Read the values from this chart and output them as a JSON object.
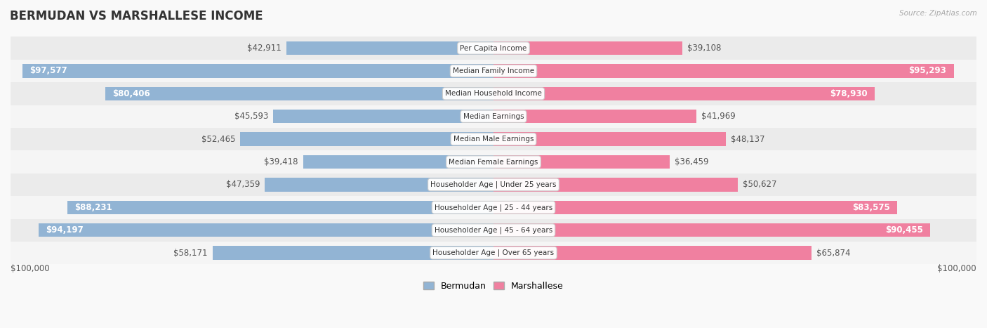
{
  "title": "BERMUDAN VS MARSHALLESE INCOME",
  "source": "Source: ZipAtlas.com",
  "max_val": 100000,
  "categories": [
    "Per Capita Income",
    "Median Family Income",
    "Median Household Income",
    "Median Earnings",
    "Median Male Earnings",
    "Median Female Earnings",
    "Householder Age | Under 25 years",
    "Householder Age | 25 - 44 years",
    "Householder Age | 45 - 64 years",
    "Householder Age | Over 65 years"
  ],
  "bermudan": [
    42911,
    97577,
    80406,
    45593,
    52465,
    39418,
    47359,
    88231,
    94197,
    58171
  ],
  "marshallese": [
    39108,
    95293,
    78930,
    41969,
    48137,
    36459,
    50627,
    83575,
    90455,
    65874
  ],
  "bermudan_labels": [
    "$42,911",
    "$97,577",
    "$80,406",
    "$45,593",
    "$52,465",
    "$39,418",
    "$47,359",
    "$88,231",
    "$94,197",
    "$58,171"
  ],
  "marshallese_labels": [
    "$39,108",
    "$95,293",
    "$78,930",
    "$41,969",
    "$48,137",
    "$36,459",
    "$50,627",
    "$83,575",
    "$90,455",
    "$65,874"
  ],
  "blue_color": "#92b4d4",
  "pink_color": "#f080a0",
  "blue_label_threshold": 75000,
  "pink_label_threshold": 75000,
  "bg_color": "#f5f5f5",
  "row_bg_even": "#ebebeb",
  "row_bg_odd": "#f5f5f5",
  "label_fontsize": 8.5,
  "title_fontsize": 12,
  "legend_fontsize": 9,
  "cat_fontsize": 7.5
}
